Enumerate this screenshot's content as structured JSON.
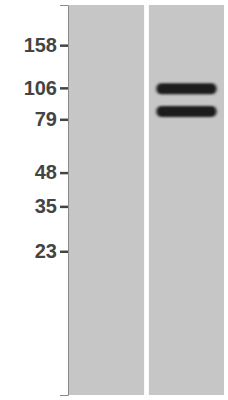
{
  "chart_data": {
    "type": "western_blot",
    "categories": [
      null,
      null
    ],
    "values": [
      [],
      [
        105,
        85
      ]
    ],
    "ylim": [
      6,
      230
    ],
    "yticks": [
      158,
      106,
      79,
      48,
      35,
      23
    ],
    "log": "y",
    "color": "#1e1e1e",
    "tick_labels": "y"
  }
}
